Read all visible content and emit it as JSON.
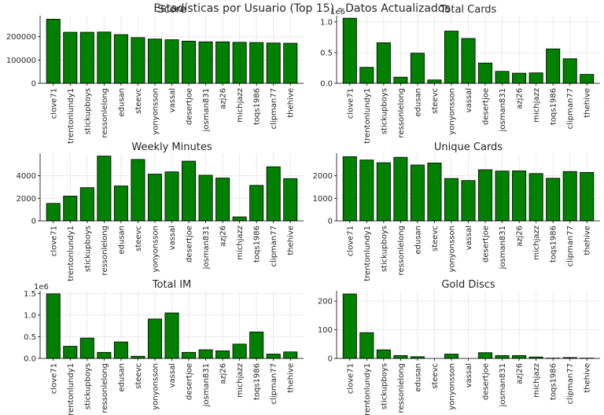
{
  "suptitle": "Estadísticas por Usuario (Top 15) - Datos Actualizados",
  "colors": {
    "bar": "#008000",
    "bar_edge": "#000000",
    "grid": "#e6e6e6",
    "axis": "#000000",
    "text": "#262626"
  },
  "chart_data": [
    {
      "type": "bar",
      "title": "Score",
      "categories": [
        "clove71",
        "trentonlundy1",
        "stickupboys",
        "ressonlelong",
        "edusan",
        "steevc",
        "yonyonsson",
        "vassal",
        "desertjoe",
        "josman831",
        "azj26",
        "michjazz",
        "toqs1986",
        "clipman77",
        "thehive"
      ],
      "values": [
        275000,
        219000,
        219000,
        220000,
        209000,
        196000,
        190000,
        187000,
        181000,
        178000,
        178000,
        176000,
        175000,
        173000,
        172000
      ],
      "ylim": [
        0,
        290000
      ],
      "yticks": [
        0,
        100000,
        200000
      ],
      "ytick_labels": [
        "0",
        "100000",
        "200000"
      ],
      "offset_label": "",
      "grid": true
    },
    {
      "type": "bar",
      "title": "Total Cards",
      "categories": [
        "clove71",
        "trentonlundy1",
        "stickupboys",
        "ressonlelong",
        "edusan",
        "steevc",
        "yonyonsson",
        "vassal",
        "desertjoe",
        "josman831",
        "azj26",
        "michjazz",
        "toqs1986",
        "clipman77",
        "thehive"
      ],
      "values": [
        1060000,
        260000,
        660000,
        100000,
        490000,
        55000,
        850000,
        730000,
        330000,
        195000,
        165000,
        170000,
        560000,
        400000,
        145000
      ],
      "ylim": [
        0,
        1100000
      ],
      "yticks": [
        0,
        500000,
        1000000
      ],
      "ytick_labels": [
        "0.0",
        "0.5",
        "1.0"
      ],
      "offset_label": "1e6",
      "grid": true
    },
    {
      "type": "bar",
      "title": "Weekly Minutes",
      "categories": [
        "clove71",
        "trentonlundy1",
        "stickupboys",
        "ressonlelong",
        "edusan",
        "steevc",
        "yonyonsson",
        "vassal",
        "desertjoe",
        "josman831",
        "azj26",
        "michjazz",
        "toqs1986",
        "clipman77",
        "thehive"
      ],
      "values": [
        1550,
        2200,
        2950,
        5750,
        3100,
        5450,
        4150,
        4350,
        5300,
        4050,
        3800,
        350,
        3150,
        4800,
        3750
      ],
      "ylim": [
        0,
        6000
      ],
      "yticks": [
        0,
        2000,
        4000
      ],
      "ytick_labels": [
        "0",
        "2000",
        "4000"
      ],
      "offset_label": "",
      "grid": true
    },
    {
      "type": "bar",
      "title": "Unique Cards",
      "categories": [
        "clove71",
        "trentonlundy1",
        "stickupboys",
        "ressonlelong",
        "edusan",
        "steevc",
        "yonyonsson",
        "vassal",
        "desertjoe",
        "josman831",
        "azj26",
        "michjazz",
        "toqs1986",
        "clipman77",
        "thehive"
      ],
      "values": [
        2850,
        2700,
        2580,
        2820,
        2480,
        2570,
        1880,
        1790,
        2270,
        2210,
        2220,
        2100,
        1890,
        2190,
        2150
      ],
      "ylim": [
        0,
        3000
      ],
      "yticks": [
        0,
        1000,
        2000
      ],
      "ytick_labels": [
        "0",
        "1000",
        "2000"
      ],
      "offset_label": "",
      "grid": true
    },
    {
      "type": "bar",
      "title": "Total IM",
      "categories": [
        "clove71",
        "trentonlundy1",
        "stickupboys",
        "ressonlelong",
        "edusan",
        "steevc",
        "yonyonsson",
        "vassal",
        "desertjoe",
        "josman831",
        "azj26",
        "michjazz",
        "toqs1986",
        "clipman77",
        "thehive"
      ],
      "values": [
        1490000,
        280000,
        470000,
        140000,
        380000,
        50000,
        910000,
        1050000,
        140000,
        200000,
        175000,
        330000,
        610000,
        100000,
        150000
      ],
      "ylim": [
        0,
        1560000
      ],
      "yticks": [
        0,
        500000,
        1000000,
        1500000
      ],
      "ytick_labels": [
        "0.0",
        "0.5",
        "1.0",
        "1.5"
      ],
      "offset_label": "1e6",
      "grid": true
    },
    {
      "type": "bar",
      "title": "Gold Discs",
      "categories": [
        "clove71",
        "trentonlundy1",
        "stickupboys",
        "ressonlelong",
        "edusan",
        "steevc",
        "yonyonsson",
        "vassal",
        "desertjoe",
        "josman831",
        "azj26",
        "michjazz",
        "toqs1986",
        "clipman77",
        "thehive"
      ],
      "values": [
        225,
        90,
        30,
        10,
        6,
        0,
        15,
        0,
        20,
        10,
        10,
        5,
        1,
        3,
        1
      ],
      "ylim": [
        0,
        236
      ],
      "yticks": [
        0,
        100,
        200
      ],
      "ytick_labels": [
        "0",
        "100",
        "200"
      ],
      "offset_label": "",
      "grid": true
    }
  ]
}
